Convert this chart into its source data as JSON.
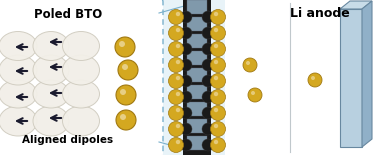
{
  "bg_color": "#ffffff",
  "scene_bg": "#e8f3f8",
  "dashed_box_color": "#7ab0cc",
  "title_left": "Poled BTO",
  "title_right": "Li anode",
  "label_bottom": "Aligned dipoles",
  "bto_particle_color": "#f2efe8",
  "bto_particle_edge": "#d0ccc0",
  "arrow_color": "#1a1a2e",
  "gold_color": "#d4a820",
  "gold_edge": "#a07810",
  "carbon_black": "#1a1a1a",
  "bto_platelet_color": "#8ca8bc",
  "li_front_color": "#b8d0e0",
  "li_side_color": "#90b0c8",
  "li_top_color": "#c8dce8",
  "li_edge_color": "#6888a0",
  "connector_color": "#7ab0cc",
  "figsize": [
    3.78,
    1.55
  ],
  "dpi": 100
}
